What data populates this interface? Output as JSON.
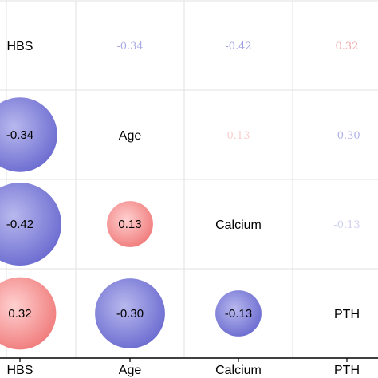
{
  "chart_data": {
    "type": "heatmap",
    "title": "",
    "variables": [
      "HBS",
      "Age",
      "Calcium",
      "PTH"
    ],
    "x_tick_labels": [
      "HBS",
      "Age",
      "Calcium",
      "PTH"
    ],
    "matrix": [
      [
        1.0,
        -0.34,
        -0.42,
        0.32
      ],
      [
        -0.34,
        1.0,
        0.13,
        -0.3
      ],
      [
        -0.42,
        0.13,
        1.0,
        -0.13
      ],
      [
        0.32,
        -0.3,
        -0.13,
        1.0
      ]
    ],
    "matrix_labels": [
      [
        "",
        "-0.34",
        "-0.42",
        "0.32"
      ],
      [
        "-0.34",
        "",
        "0.13",
        "-0.30"
      ],
      [
        "-0.42",
        "0.13",
        "",
        "-0.13"
      ],
      [
        "0.32",
        "-0.30",
        "-0.13",
        ""
      ]
    ],
    "lower_triangle": "circles",
    "upper_triangle": "numbers",
    "colors": {
      "negative": "#4a4ab8",
      "positive": "#f07878",
      "grid": "#e2e2e2",
      "axis": "#000000"
    }
  }
}
